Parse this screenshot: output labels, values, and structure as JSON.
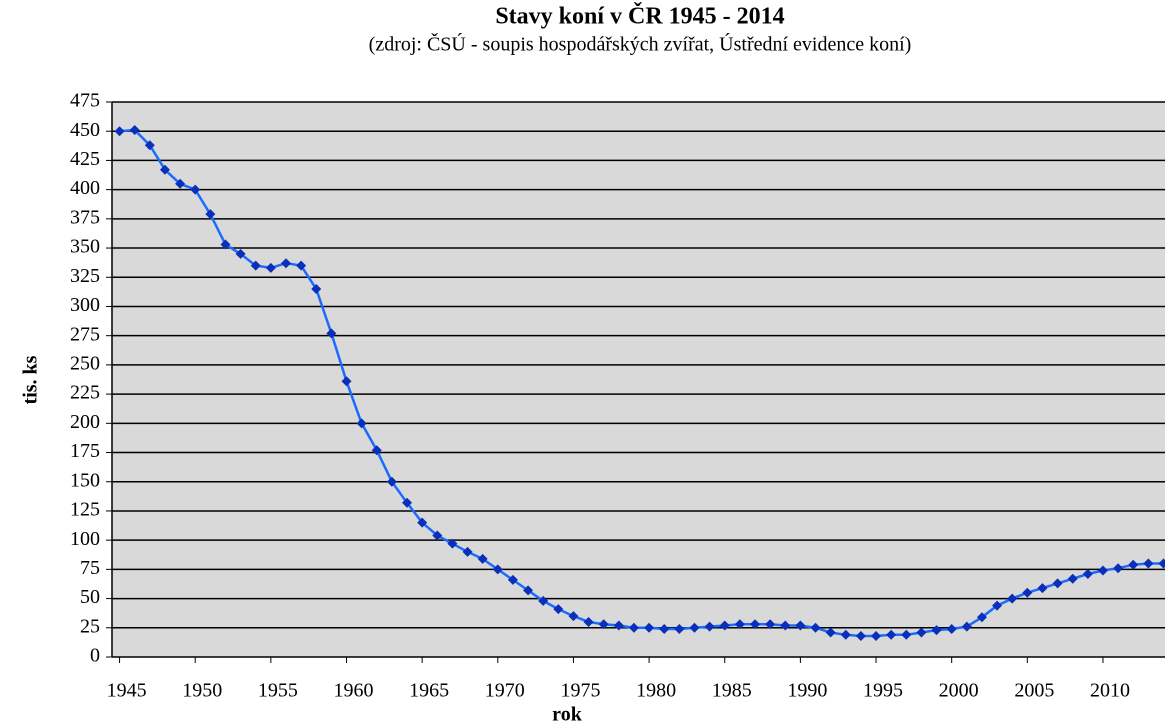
{
  "chart_data": {
    "type": "line",
    "title": "Stavy koní v ČR 1945 - 2014",
    "subtitle": "(zdroj: ČSÚ - soupis hospodářských zvířat, Ústřední evidence koní)",
    "xlabel": "rok",
    "ylabel": "tis. ks",
    "x": [
      1945,
      1946,
      1947,
      1948,
      1949,
      1950,
      1951,
      1952,
      1953,
      1954,
      1955,
      1956,
      1957,
      1958,
      1959,
      1960,
      1961,
      1962,
      1963,
      1964,
      1965,
      1966,
      1967,
      1968,
      1969,
      1970,
      1971,
      1972,
      1973,
      1974,
      1975,
      1976,
      1977,
      1978,
      1979,
      1980,
      1981,
      1982,
      1983,
      1984,
      1985,
      1986,
      1987,
      1988,
      1989,
      1990,
      1991,
      1992,
      1993,
      1994,
      1995,
      1996,
      1997,
      1998,
      1999,
      2000,
      2001,
      2002,
      2003,
      2004,
      2005,
      2006,
      2007,
      2008,
      2009,
      2010,
      2011,
      2012,
      2013,
      2014
    ],
    "values": [
      450,
      451,
      438,
      417,
      405,
      400,
      379,
      353,
      345,
      335,
      333,
      337,
      335,
      315,
      277,
      236,
      200,
      177,
      150,
      132,
      115,
      104,
      97,
      90,
      84,
      75,
      66,
      57,
      48,
      41,
      35,
      30,
      28,
      27,
      25,
      25,
      24,
      24,
      25,
      26,
      27,
      28,
      28,
      28,
      27,
      27,
      25,
      21,
      19,
      18,
      18,
      19,
      19,
      21,
      23,
      24,
      26,
      34,
      44,
      50,
      55,
      59,
      63,
      67,
      71,
      74,
      76,
      79,
      80,
      80
    ],
    "color": "#1a6cff",
    "marker_color": "#0a2fb8",
    "plot_background": "#d9d9d9",
    "xlim": [
      1944.5,
      2014.1
    ],
    "xticks": [
      1945,
      1950,
      1955,
      1960,
      1965,
      1970,
      1975,
      1980,
      1985,
      1990,
      1995,
      2000,
      2005,
      2010
    ],
    "ylim": [
      0,
      475
    ],
    "yticks": [
      0,
      25,
      50,
      75,
      100,
      125,
      150,
      175,
      200,
      225,
      250,
      275,
      300,
      325,
      350,
      375,
      400,
      425,
      450,
      475
    ],
    "grid": true
  }
}
